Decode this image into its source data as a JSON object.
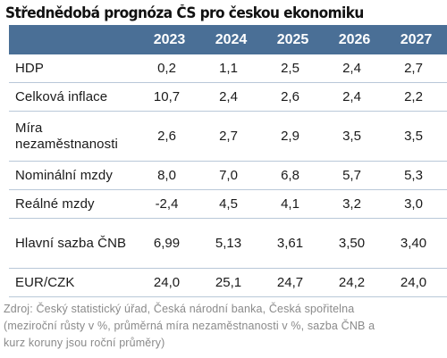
{
  "chart_data": {
    "type": "table",
    "title": "Střednědobá prognóza ČS pro českou ekonomiku",
    "columns": [
      "",
      "2023",
      "2024",
      "2025",
      "2026",
      "2027"
    ],
    "rows": [
      {
        "label": "HDP",
        "values": [
          "0,2",
          "1,1",
          "2,5",
          "2,4",
          "2,7"
        ]
      },
      {
        "label": "Celková inflace",
        "values": [
          "10,7",
          "2,4",
          "2,6",
          "2,4",
          "2,2"
        ]
      },
      {
        "label": "Míra nezaměstnanosti",
        "values": [
          "2,6",
          "2,7",
          "2,9",
          "3,5",
          "3,5"
        ]
      },
      {
        "label": "Nominální mzdy",
        "values": [
          "8,0",
          "7,0",
          "6,8",
          "5,7",
          "5,3"
        ]
      },
      {
        "label": "Reálné mzdy",
        "values": [
          "-2,4",
          "4,5",
          "4,1",
          "3,2",
          "3,0"
        ]
      },
      {
        "label": "Hlavní sazba ČNB",
        "values": [
          "6,99",
          "5,13",
          "3,61",
          "3,50",
          "3,40"
        ]
      },
      {
        "label": "EUR/CZK",
        "values": [
          "24,0",
          "25,1",
          "24,7",
          "24,2",
          "24,0"
        ]
      }
    ],
    "source_lines": [
      "Zdroj: Český statistický úřad, Česká národní banka, Česká spořitelna",
      "(meziroční růsty v %, průměrná míra nezaměstnanosti v %, sazba ČNB a",
      "kurz koruny jsou roční průměry)"
    ]
  },
  "colors": {
    "header_background": "#4a6f96",
    "header_text": "#ffffff",
    "row_divider": "#b9c8d8",
    "source_text": "#8a8a8a"
  }
}
